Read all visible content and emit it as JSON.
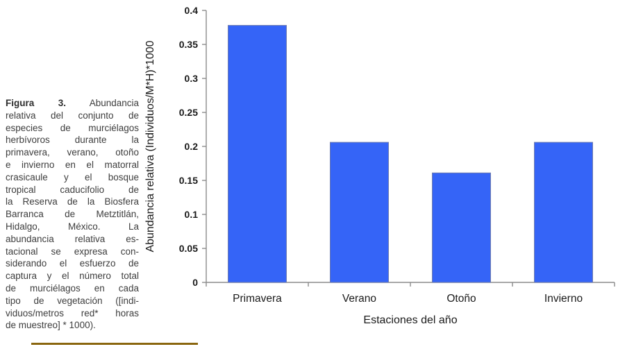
{
  "figure_caption": {
    "label": "Figura 3.",
    "lines": [
      "Abundancia",
      "relativa del conjunto de",
      "especies de murciélagos",
      "herbívoros durante la",
      "primavera, verano, otoño",
      "e invierno en el matorral",
      "crasicaule y el bosque",
      "tropical caducifolio de",
      "la Reserva de la Biosfera",
      "Barranca de Metztitlán,",
      "Hidalgo, México. La",
      "abundancia relativa es-",
      "tacional se expresa con-",
      "siderando el esfuerzo de",
      "captura y el número total",
      "de murciélagos en cada",
      "tipo de vegetación ([indi-",
      "viduos/metros red* horas",
      "de muestreo] * 1000)."
    ]
  },
  "chart_data": {
    "type": "bar",
    "title": "",
    "categories": [
      "Primavera",
      "Verano",
      "Otoño",
      "Invierno"
    ],
    "values": [
      0.378,
      0.206,
      0.161,
      0.206
    ],
    "xlabel": "Estaciones del año",
    "ylabel": "Abundancia relativa (Individuos/M*H)*1000",
    "ylim": [
      0,
      0.4
    ],
    "yticks": [
      0,
      0.05,
      0.1,
      0.15,
      0.2,
      0.25,
      0.3,
      0.35,
      0.4
    ],
    "ytick_labels": [
      "0",
      "0.05",
      "0.1",
      "0.15",
      "0.2",
      "0.25",
      "0.3",
      "0.35",
      "0.4"
    ],
    "grid": false,
    "legend": null,
    "bar_color": "#3564f7",
    "bar_border_color": "#6f7cae",
    "axis_color": "#8c8c8c"
  },
  "decorations": {
    "underline_color": "#8a660f"
  }
}
